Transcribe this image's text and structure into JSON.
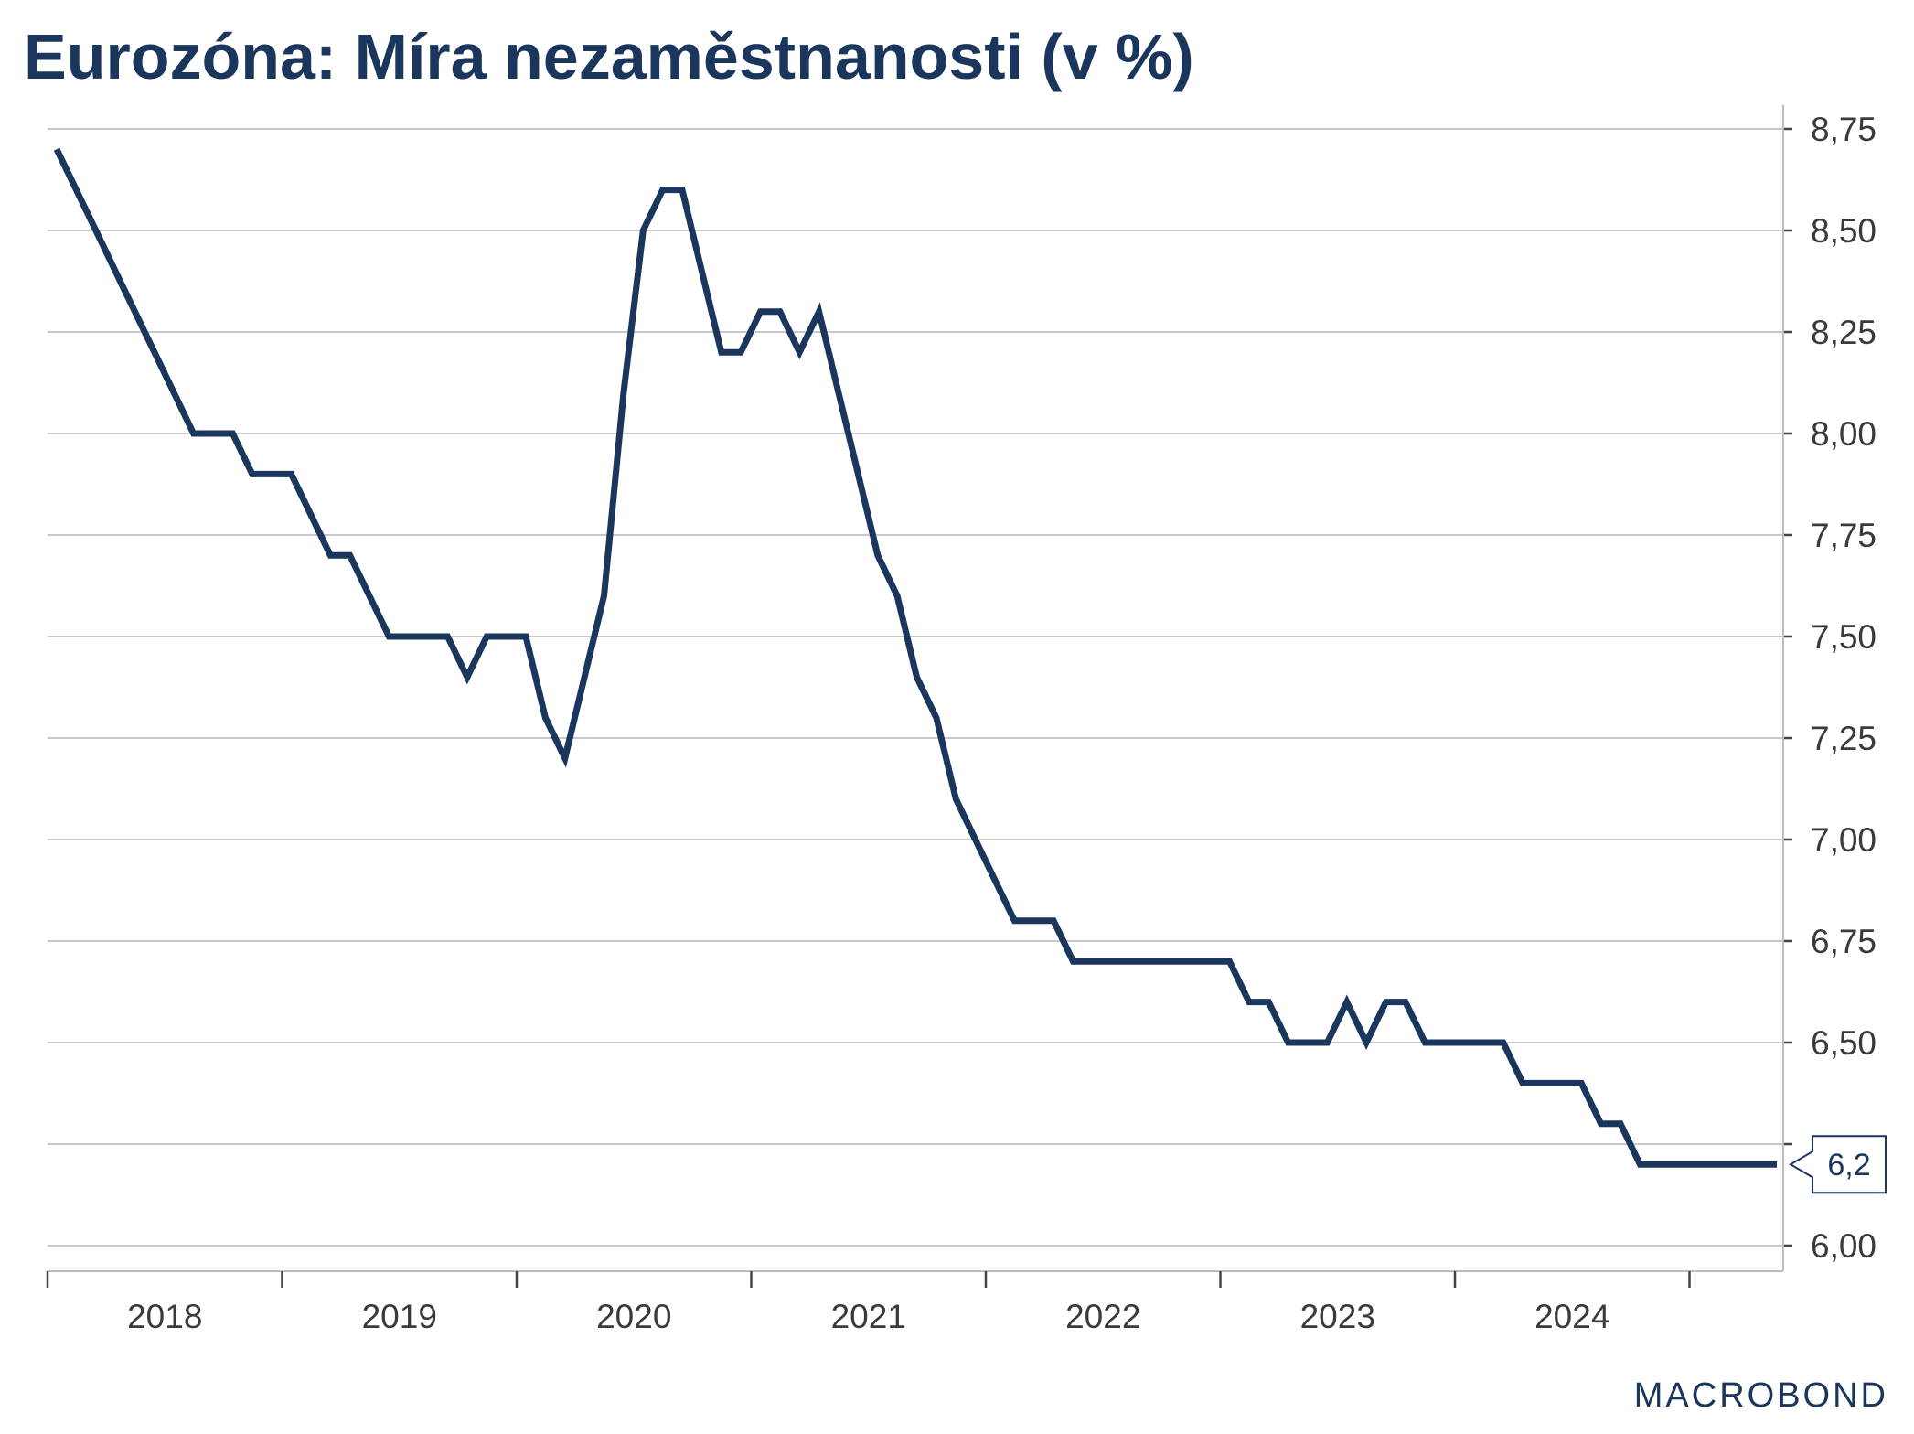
{
  "title": "Eurozóna: Míra nezaměstnanosti (v %)",
  "brand": {
    "logo_text": "MACROBOND",
    "color": "#1b365d"
  },
  "chart_data": {
    "type": "line",
    "title": "Eurozóna: Míra nezaměstnanosti (v %)",
    "xlabel": "",
    "ylabel": "",
    "y_axis_position": "right",
    "ylim": [
      6.0,
      8.75
    ],
    "yticks": [
      6.0,
      6.25,
      6.5,
      6.75,
      7.0,
      7.25,
      7.5,
      7.75,
      8.0,
      8.25,
      8.5,
      8.75
    ],
    "ytick_labels": [
      "6,00",
      "",
      "6,50",
      "6,75",
      "7,00",
      "7,25",
      "7,50",
      "7,75",
      "8,00",
      "8,25",
      "8,50",
      "8,75"
    ],
    "x_years": [
      "2018",
      "2019",
      "2020",
      "2021",
      "2022",
      "2023",
      "2024"
    ],
    "grid": "horizontal",
    "legend": "none",
    "series_color": "#1b365d",
    "last_value_label": "6,2",
    "series": [
      {
        "x": [
          "2018-01",
          "2018-02",
          "2018-03",
          "2018-04",
          "2018-05",
          "2018-06",
          "2018-07",
          "2018-08",
          "2018-09",
          "2018-10",
          "2018-11",
          "2018-12",
          "2019-01",
          "2019-02",
          "2019-03",
          "2019-04",
          "2019-05",
          "2019-06",
          "2019-07",
          "2019-08",
          "2019-09",
          "2019-10",
          "2019-11",
          "2019-12",
          "2020-01",
          "2020-02",
          "2020-03",
          "2020-04",
          "2020-05",
          "2020-06",
          "2020-07",
          "2020-08",
          "2020-09",
          "2020-10",
          "2020-11",
          "2020-12",
          "2021-01",
          "2021-02",
          "2021-03",
          "2021-04",
          "2021-05",
          "2021-06",
          "2021-07",
          "2021-08",
          "2021-09",
          "2021-10",
          "2021-11",
          "2021-12",
          "2022-01",
          "2022-02",
          "2022-03",
          "2022-04",
          "2022-05",
          "2022-06",
          "2022-07",
          "2022-08",
          "2022-09",
          "2022-10",
          "2022-11",
          "2022-12",
          "2023-01",
          "2023-02",
          "2023-03",
          "2023-04",
          "2023-05",
          "2023-06",
          "2023-07",
          "2023-08",
          "2023-09",
          "2023-10",
          "2023-11",
          "2023-12",
          "2024-01",
          "2024-02",
          "2024-03",
          "2024-04",
          "2024-05",
          "2024-06",
          "2024-07",
          "2024-08",
          "2024-09",
          "2024-10",
          "2024-11",
          "2024-12",
          "2025-01",
          "2025-02",
          "2025-03",
          "2025-04",
          "2025-05"
        ],
        "values": [
          8.7,
          8.6,
          8.5,
          8.4,
          8.3,
          8.2,
          8.1,
          8.0,
          8.0,
          8.0,
          7.9,
          7.9,
          7.9,
          7.8,
          7.7,
          7.7,
          7.6,
          7.5,
          7.5,
          7.5,
          7.5,
          7.4,
          7.5,
          7.5,
          7.5,
          7.3,
          7.2,
          7.4,
          7.6,
          8.1,
          8.5,
          8.6,
          8.6,
          8.4,
          8.2,
          8.2,
          8.3,
          8.3,
          8.2,
          8.3,
          8.1,
          7.9,
          7.7,
          7.6,
          7.4,
          7.3,
          7.1,
          7.0,
          6.9,
          6.8,
          6.8,
          6.8,
          6.7,
          6.7,
          6.7,
          6.7,
          6.7,
          6.7,
          6.7,
          6.7,
          6.7,
          6.6,
          6.6,
          6.5,
          6.5,
          6.5,
          6.6,
          6.5,
          6.6,
          6.6,
          6.5,
          6.5,
          6.5,
          6.5,
          6.5,
          6.4,
          6.4,
          6.4,
          6.4,
          6.3,
          6.3,
          6.2,
          6.2,
          6.2,
          6.2,
          6.2,
          6.2,
          6.2,
          6.2
        ]
      }
    ]
  }
}
